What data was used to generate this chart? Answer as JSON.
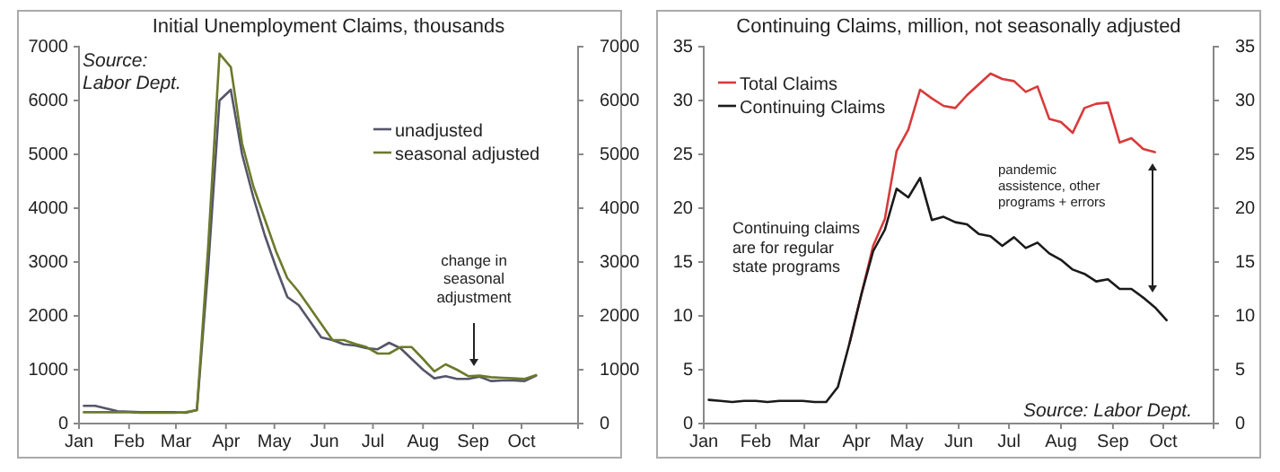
{
  "chart_data": [
    {
      "type": "line",
      "title": "Initial Unemployment Claims, thousands",
      "x": [
        "--01-04",
        "--01-11",
        "--01-18",
        "--01-25",
        "--02-01",
        "--02-08",
        "--02-15",
        "--02-22",
        "--02-29",
        "--03-07",
        "--03-14",
        "--03-21",
        "--03-28",
        "--04-04",
        "--04-11",
        "--04-18",
        "--04-25",
        "--05-02",
        "--05-09",
        "--05-16",
        "--05-23",
        "--05-30",
        "--06-06",
        "--06-13",
        "--06-20",
        "--06-27",
        "--07-04",
        "--07-11",
        "--07-18",
        "--07-25",
        "--08-01",
        "--08-08",
        "--08-15",
        "--08-22",
        "--08-29",
        "--09-05",
        "--09-12",
        "--09-19",
        "--09-26",
        "--10-03",
        "--10-10"
      ],
      "series": [
        {
          "name": "unadjusted",
          "color": "#55556a",
          "values": [
            330,
            330,
            280,
            230,
            220,
            210,
            210,
            210,
            210,
            200,
            250,
            2900,
            6000,
            6200,
            5000,
            4200,
            3500,
            2900,
            2350,
            2200,
            1900,
            1600,
            1550,
            1470,
            1450,
            1400,
            1380,
            1500,
            1400,
            1200,
            1000,
            840,
            880,
            830,
            830,
            870,
            790,
            800,
            800,
            790,
            890
          ]
        },
        {
          "name": "seasonal adjusted",
          "color": "#6b7a2a",
          "values": [
            210,
            210,
            210,
            210,
            210,
            200,
            200,
            200,
            200,
            210,
            250,
            3300,
            6870,
            6620,
            5200,
            4400,
            3800,
            3200,
            2700,
            2450,
            2150,
            1850,
            1550,
            1550,
            1480,
            1420,
            1300,
            1300,
            1420,
            1420,
            1200,
            970,
            1100,
            1000,
            880,
            890,
            860,
            850,
            840,
            830,
            900
          ]
        }
      ],
      "xlim": [
        "--01-01",
        "--11-05"
      ],
      "xticks": [
        {
          "value": "--01-01",
          "label": "Jan"
        },
        {
          "value": "--02-01",
          "label": "Feb"
        },
        {
          "value": "--03-01",
          "label": "Mar"
        },
        {
          "value": "--04-01",
          "label": "Apr"
        },
        {
          "value": "--05-01",
          "label": "May"
        },
        {
          "value": "--06-01",
          "label": "Jun"
        },
        {
          "value": "--07-01",
          "label": "Jul"
        },
        {
          "value": "--08-01",
          "label": "Aug"
        },
        {
          "value": "--09-01",
          "label": "Sep"
        },
        {
          "value": "--10-01",
          "label": "Oct"
        }
      ],
      "ylim": [
        0,
        7000
      ],
      "yticks": [
        0,
        1000,
        2000,
        3000,
        4000,
        5000,
        6000,
        7000
      ],
      "y2lim": [
        0,
        7000
      ],
      "y2ticks": [
        0,
        1000,
        2000,
        3000,
        4000,
        5000,
        6000,
        7000
      ],
      "legend": "top right",
      "grid": false,
      "annotations": [
        "Source:\nLabor Dept.",
        "change in\nseasonal\nadjustment"
      ]
    },
    {
      "type": "line",
      "title": "Continuing Claims, million, not seasonally adjusted",
      "x": [
        "--01-04",
        "--01-11",
        "--01-18",
        "--01-25",
        "--02-01",
        "--02-08",
        "--02-15",
        "--02-22",
        "--02-29",
        "--03-07",
        "--03-14",
        "--03-21",
        "--03-28",
        "--04-04",
        "--04-11",
        "--04-18",
        "--04-25",
        "--05-02",
        "--05-09",
        "--05-16",
        "--05-23",
        "--05-30",
        "--06-06",
        "--06-13",
        "--06-20",
        "--06-27",
        "--07-04",
        "--07-11",
        "--07-18",
        "--07-25",
        "--08-01",
        "--08-08",
        "--08-15",
        "--08-22",
        "--08-29",
        "--09-05",
        "--09-12",
        "--09-19",
        "--09-26",
        "--10-03"
      ],
      "series": [
        {
          "name": "Total Claims",
          "color": "#d93a3a",
          "values": [
            null,
            null,
            null,
            null,
            null,
            null,
            null,
            null,
            null,
            null,
            null,
            null,
            7.5,
            12,
            16.5,
            19,
            25.3,
            27.3,
            31,
            30.2,
            29.5,
            29.3,
            30.5,
            31.5,
            32.5,
            32,
            31.8,
            30.8,
            31.3,
            28.3,
            28,
            27,
            29.3,
            29.7,
            29.8,
            26.1,
            26.5,
            25.5,
            25.2,
            null
          ]
        },
        {
          "name": "Continuing Claims",
          "color": "#1a1a1a",
          "values": [
            2.2,
            2.1,
            2.0,
            2.1,
            2.1,
            2.0,
            2.1,
            2.1,
            2.1,
            2.0,
            2.0,
            3.4,
            7.5,
            12,
            16,
            18,
            21.8,
            21,
            22.8,
            18.9,
            19.2,
            18.7,
            18.5,
            17.6,
            17.4,
            16.5,
            17.3,
            16.3,
            16.8,
            15.8,
            15.2,
            14.3,
            13.9,
            13.2,
            13.4,
            12.5,
            12.5,
            11.7,
            10.8,
            9.6
          ]
        }
      ],
      "xlim": [
        "--01-01",
        "--10-31"
      ],
      "xticks": [
        {
          "value": "--01-01",
          "label": "Jan"
        },
        {
          "value": "--02-01",
          "label": "Feb"
        },
        {
          "value": "--03-01",
          "label": "Mar"
        },
        {
          "value": "--04-01",
          "label": "Apr"
        },
        {
          "value": "--05-01",
          "label": "May"
        },
        {
          "value": "--06-01",
          "label": "Jun"
        },
        {
          "value": "--07-01",
          "label": "Jul"
        },
        {
          "value": "--08-01",
          "label": "Aug"
        },
        {
          "value": "--09-01",
          "label": "Sep"
        },
        {
          "value": "--10-01",
          "label": "Oct"
        }
      ],
      "ylim": [
        0,
        35
      ],
      "yticks": [
        0,
        5,
        10,
        15,
        20,
        25,
        30,
        35
      ],
      "y2lim": [
        0,
        35
      ],
      "y2ticks": [
        0,
        5,
        10,
        15,
        20,
        25,
        30,
        35
      ],
      "legend": "top left",
      "grid": false,
      "annotations": [
        "Continuing claims\nare for regular\nstate programs",
        "pandemic\nassistence, other\nprograms + errors",
        "Source: Labor Dept."
      ]
    }
  ]
}
